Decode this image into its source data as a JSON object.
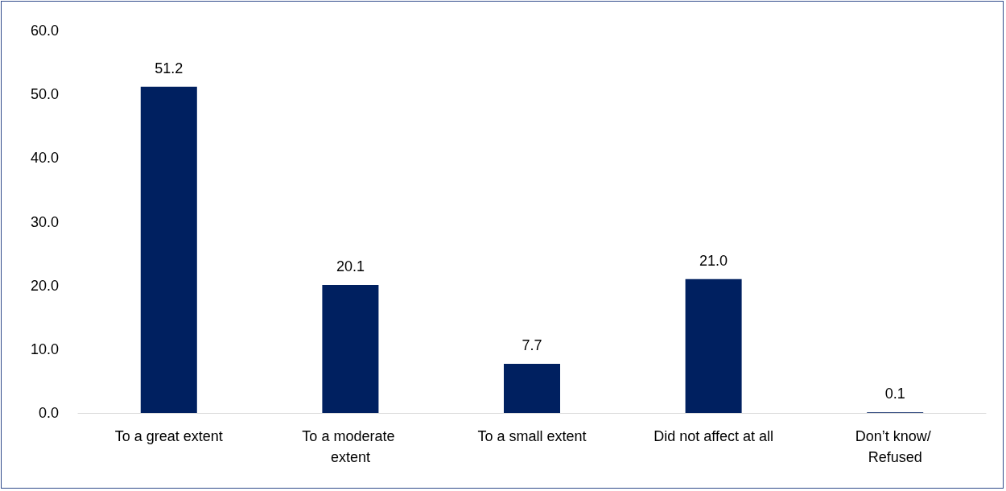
{
  "chart_data": {
    "type": "bar",
    "categories": [
      "To a great extent",
      "To a moderate extent",
      "To a small extent",
      "Did not affect at all",
      "Don’t know/ Refused"
    ],
    "values": [
      51.2,
      20.1,
      7.7,
      21.0,
      0.1
    ],
    "value_labels": [
      "51.2",
      "20.1",
      "7.7",
      "21.0",
      "0.1"
    ],
    "color": "#002060",
    "ylim": [
      0,
      60
    ],
    "yticks": [
      {
        "value": 0,
        "label": "0.0"
      },
      {
        "value": 10,
        "label": "10.0"
      },
      {
        "value": 20,
        "label": "20.0"
      },
      {
        "value": 30,
        "label": "30.0"
      },
      {
        "value": 40,
        "label": "40.0"
      },
      {
        "value": 50,
        "label": "50.0"
      },
      {
        "value": 60,
        "label": "60.0"
      }
    ],
    "grid": false
  }
}
